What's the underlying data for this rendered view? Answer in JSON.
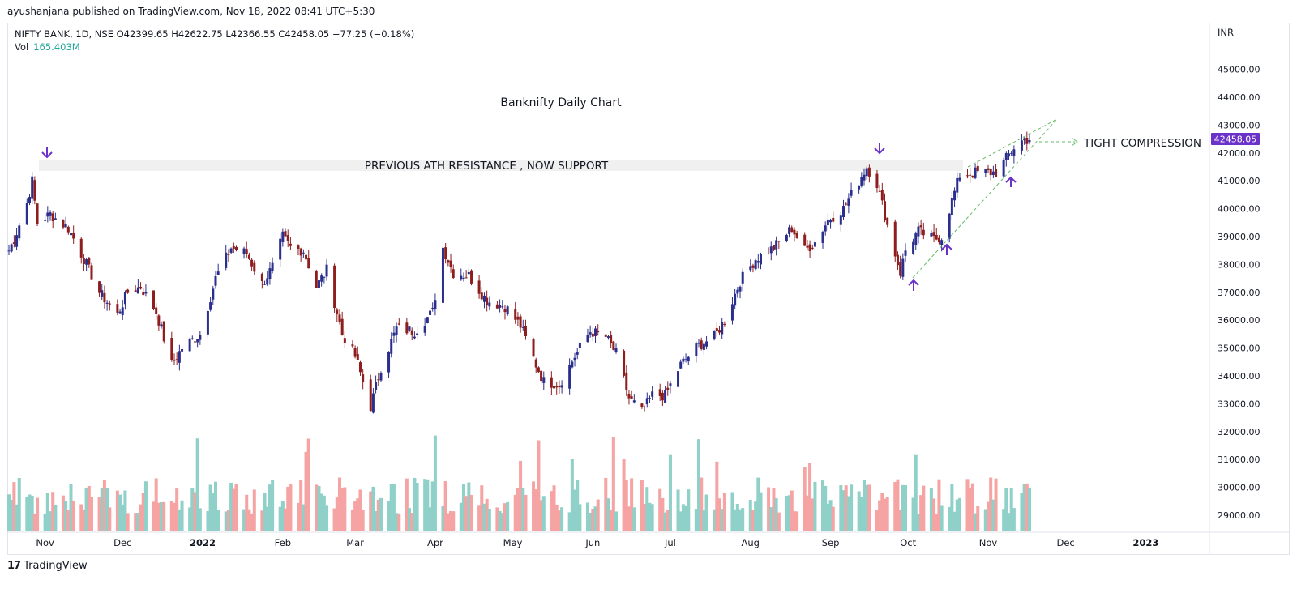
{
  "header": {
    "published_by": "ayushanjana published on TradingView.com, Nov 18, 2022 08:41 UTC+5:30"
  },
  "legend": {
    "symbol_line": "NIFTY BANK, 1D, NSE  O42399.65  H42622.75  L42366.55  C42458.05  −77.25 (−0.18%)",
    "volume_label": "Vol",
    "volume_value": "165.403M"
  },
  "price_axis": {
    "currency": "INR",
    "ticks": [
      "45000.00",
      "44000.00",
      "43000.00",
      "42000.00",
      "41000.00",
      "40000.00",
      "39000.00",
      "38000.00",
      "37000.00",
      "36000.00",
      "35000.00",
      "34000.00",
      "33000.00",
      "32000.00",
      "31000.00",
      "30000.00",
      "29000.00"
    ],
    "last_price_label": "42458.05"
  },
  "time_axis": {
    "labels": [
      "Nov",
      "Dec",
      "2022",
      "Feb",
      "Mar",
      "Apr",
      "May",
      "Jun",
      "Jul",
      "Aug",
      "Sep",
      "Oct",
      "Nov",
      "Dec",
      "2023"
    ]
  },
  "annotations": {
    "chart_title": "Banknifty Daily Chart",
    "resistance_text": "PREVIOUS ATH RESISTANCE , NOW SUPPORT",
    "compression_text": "TIGHT COMPRESSION"
  },
  "branding": {
    "logo_text": "17",
    "name": "TradingView"
  },
  "colors": {
    "up_candle": "#2a2e8c",
    "down_candle": "#8e1d1d",
    "volume_up": "#8fd0c8",
    "volume_down": "#f5a3a3",
    "accent_purple": "#6a32c9",
    "trendline_green": "#66bb6a",
    "resistance_band": "#f0f0f0"
  },
  "chart_data": {
    "type": "candlestick",
    "symbol": "NIFTY BANK",
    "interval": "1D",
    "exchange": "NSE",
    "ylim": [
      28500,
      45800
    ],
    "y_scale": "linear",
    "grid": false,
    "last": {
      "open": 42399.65,
      "high": 42622.75,
      "low": 42366.55,
      "close": 42458.05,
      "change": -77.25,
      "change_pct": -0.18
    },
    "volume_last": "165.403M",
    "x_range": [
      "2021-10-18",
      "2023-01-15"
    ],
    "close_path": [
      [
        "2021-10-18",
        38500
      ],
      [
        "2021-10-20",
        38900
      ],
      [
        "2021-10-25",
        40200
      ],
      [
        "2021-10-27",
        41000
      ],
      [
        "2021-10-29",
        39500
      ],
      [
        "2021-11-03",
        39800
      ],
      [
        "2021-11-10",
        39300
      ],
      [
        "2021-11-16",
        38200
      ],
      [
        "2021-11-22",
        37000
      ],
      [
        "2021-11-29",
        36200
      ],
      [
        "2021-12-03",
        37000
      ],
      [
        "2021-12-08",
        37200
      ],
      [
        "2021-12-14",
        36300
      ],
      [
        "2021-12-20",
        34400
      ],
      [
        "2021-12-24",
        35000
      ],
      [
        "2021-12-31",
        35500
      ],
      [
        "2022-01-06",
        37500
      ],
      [
        "2022-01-12",
        38600
      ],
      [
        "2022-01-18",
        38400
      ],
      [
        "2022-01-24",
        37300
      ],
      [
        "2022-01-28",
        37900
      ],
      [
        "2022-02-01",
        39000
      ],
      [
        "2022-02-04",
        38600
      ],
      [
        "2022-02-09",
        38500
      ],
      [
        "2022-02-14",
        37200
      ],
      [
        "2022-02-18",
        37800
      ],
      [
        "2022-02-24",
        35500
      ],
      [
        "2022-03-01",
        34700
      ],
      [
        "2022-03-07",
        32900
      ],
      [
        "2022-03-11",
        34300
      ],
      [
        "2022-03-17",
        35700
      ],
      [
        "2022-03-24",
        35600
      ],
      [
        "2022-03-31",
        36300
      ],
      [
        "2022-04-04",
        38600
      ],
      [
        "2022-04-08",
        37700
      ],
      [
        "2022-04-14",
        37600
      ],
      [
        "2022-04-21",
        36700
      ],
      [
        "2022-04-28",
        36500
      ],
      [
        "2022-05-04",
        35800
      ],
      [
        "2022-05-10",
        34400
      ],
      [
        "2022-05-13",
        33800
      ],
      [
        "2022-05-19",
        33700
      ],
      [
        "2022-05-25",
        34700
      ],
      [
        "2022-05-31",
        35600
      ],
      [
        "2022-06-06",
        35400
      ],
      [
        "2022-06-10",
        34800
      ],
      [
        "2022-06-15",
        33200
      ],
      [
        "2022-06-20",
        32700
      ],
      [
        "2022-06-24",
        33300
      ],
      [
        "2022-06-29",
        33300
      ],
      [
        "2022-07-05",
        34400
      ],
      [
        "2022-07-12",
        35100
      ],
      [
        "2022-07-18",
        35400
      ],
      [
        "2022-07-22",
        36000
      ],
      [
        "2022-07-28",
        37400
      ],
      [
        "2022-08-03",
        38200
      ],
      [
        "2022-08-10",
        38600
      ],
      [
        "2022-08-17",
        39300
      ],
      [
        "2022-08-22",
        38500
      ],
      [
        "2022-08-26",
        38800
      ],
      [
        "2022-08-31",
        39600
      ],
      [
        "2022-09-06",
        40000
      ],
      [
        "2022-09-12",
        41000
      ],
      [
        "2022-09-15",
        41500
      ],
      [
        "2022-09-19",
        40900
      ],
      [
        "2022-09-23",
        39400
      ],
      [
        "2022-09-28",
        37700
      ],
      [
        "2022-09-30",
        38500
      ],
      [
        "2022-10-05",
        39200
      ],
      [
        "2022-10-11",
        38900
      ],
      [
        "2022-10-14",
        39000
      ],
      [
        "2022-10-18",
        40300
      ],
      [
        "2022-10-21",
        41200
      ],
      [
        "2022-10-27",
        41300
      ],
      [
        "2022-10-31",
        41300
      ],
      [
        "2022-11-04",
        41300
      ],
      [
        "2022-11-08",
        41800
      ],
      [
        "2022-11-11",
        42200
      ],
      [
        "2022-11-15",
        42500
      ],
      [
        "2022-11-17",
        42458
      ]
    ],
    "volume_scale_note": "volume bars drawn in lower pane, relative heights only"
  }
}
